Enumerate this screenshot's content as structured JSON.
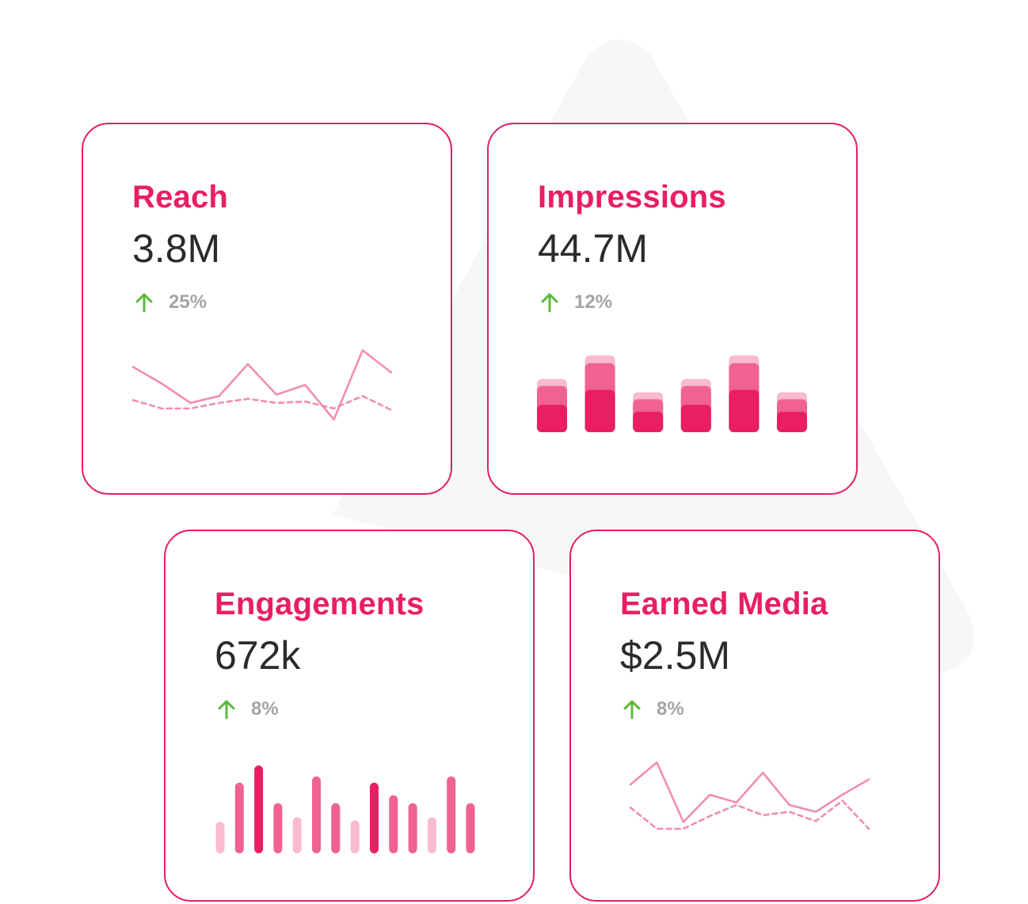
{
  "colors": {
    "accent": "#e91e63",
    "border": "#e21e64",
    "value_text": "#2b2b2b",
    "delta_text": "#a5a5a5",
    "arrow_up": "#5cb83b",
    "line_light": "#f28db1",
    "bar_dark": "#e91e63",
    "bar_mid": "#f06292",
    "bar_light": "#f8bbd0",
    "background_shape": "#f7f7f7"
  },
  "cards": {
    "reach": {
      "title": "Reach",
      "value": "3.8M",
      "delta": "25%",
      "delta_icon": "arrow-up-icon"
    },
    "impressions": {
      "title": "Impressions",
      "value": "44.7M",
      "delta": "12%",
      "delta_icon": "arrow-up-icon"
    },
    "engagements": {
      "title": "Engagements",
      "value": "672k",
      "delta": "8%",
      "delta_icon": "arrow-up-icon"
    },
    "earned_media": {
      "title": "Earned Media",
      "value": "$2.5M",
      "delta": "8%",
      "delta_icon": "arrow-up-icon"
    }
  },
  "chart_data": [
    {
      "card": "reach",
      "type": "line",
      "x": [
        0,
        1,
        2,
        3,
        4,
        5,
        6,
        7,
        8,
        9
      ],
      "series": [
        {
          "style": "solid",
          "values": [
            38,
            26,
            12,
            17,
            40,
            18,
            25,
            0,
            50,
            34
          ]
        },
        {
          "style": "dashed",
          "values": [
            14,
            8,
            8,
            12,
            15,
            12,
            13,
            8,
            17,
            7
          ]
        }
      ],
      "ylim": [
        0,
        52
      ],
      "grid": false
    },
    {
      "card": "impressions",
      "type": "bar",
      "stacked": true,
      "categories": [
        "1",
        "2",
        "3",
        "4",
        "5",
        "6"
      ],
      "series": [
        {
          "shade": "dark",
          "values": [
            35,
            54,
            26,
            35,
            54,
            26
          ]
        },
        {
          "shade": "mid",
          "values": [
            24,
            34,
            16,
            24,
            34,
            16
          ]
        },
        {
          "shade": "light",
          "values": [
            9,
            10,
            9,
            9,
            10,
            9
          ]
        }
      ],
      "ylim": [
        0,
        100
      ],
      "grid": false
    },
    {
      "card": "engagements",
      "type": "bar",
      "categories": [
        "1",
        "2",
        "3",
        "4",
        "5",
        "6",
        "7",
        "8",
        "9",
        "10",
        "11",
        "12",
        "13",
        "14"
      ],
      "values": [
        40,
        90,
        112,
        64,
        46,
        98,
        64,
        42,
        90,
        74,
        64,
        46,
        98,
        64
      ],
      "shades": [
        "light",
        "mid",
        "dark",
        "mid",
        "light",
        "mid",
        "mid",
        "light",
        "dark",
        "mid",
        "mid",
        "light",
        "mid",
        "mid"
      ],
      "ylim": [
        0,
        115
      ],
      "grid": false
    },
    {
      "card": "earned_media",
      "type": "line",
      "x": [
        0,
        1,
        2,
        3,
        4,
        5,
        6,
        7,
        8,
        9
      ],
      "series": [
        {
          "style": "solid",
          "values": [
            52,
            78,
            8,
            40,
            31,
            66,
            28,
            20,
            40,
            58
          ]
        },
        {
          "style": "dashed",
          "values": [
            25,
            0,
            0,
            15,
            28,
            16,
            20,
            9,
            33,
            0
          ]
        }
      ],
      "ylim": [
        0,
        80
      ],
      "grid": false
    }
  ]
}
